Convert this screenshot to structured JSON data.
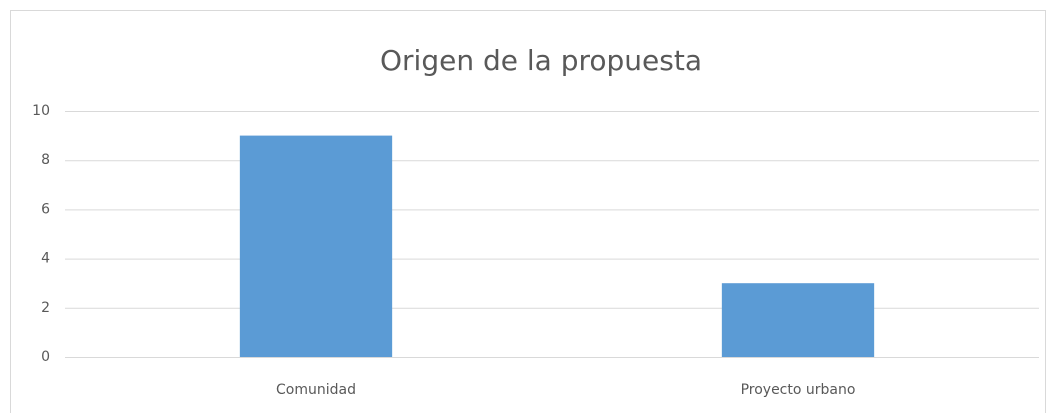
{
  "chart_data": {
    "type": "bar",
    "title": "Origen de la propuesta",
    "categories": [
      "Comunidad",
      "Proyecto urbano"
    ],
    "values": [
      9,
      3
    ],
    "color": "#5b9bd5",
    "ylim": [
      0,
      10
    ],
    "yticks": [
      0,
      2,
      4,
      6,
      8,
      10
    ],
    "grid": true
  }
}
